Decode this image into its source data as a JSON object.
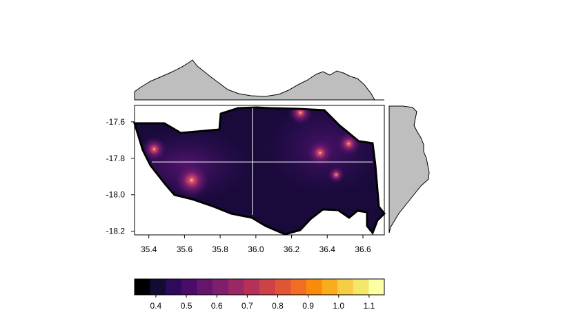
{
  "chart_data": {
    "type": "heatmap",
    "title": "",
    "xlabel": "",
    "ylabel": "",
    "xlim": [
      35.32,
      36.72
    ],
    "ylim": [
      -18.22,
      -17.51
    ],
    "x_ticks": [
      "35.4",
      "35.6",
      "35.8",
      "36.0",
      "36.2",
      "36.4",
      "36.6"
    ],
    "y_ticks": [
      "-17.6",
      "-17.8",
      "-18.0",
      "-18.2"
    ],
    "crosshair": {
      "x": 35.98,
      "y": -17.82
    },
    "colorbar": {
      "range": [
        0.33,
        1.15
      ],
      "ticks": [
        "0.4",
        "0.5",
        "0.6",
        "0.7",
        "0.8",
        "0.9",
        "1.0",
        "1.1"
      ],
      "colors": [
        "#000004",
        "#140b35",
        "#2e0a5a",
        "#4a0c6b",
        "#65156e",
        "#7f1e6c",
        "#9a2865",
        "#b4325a",
        "#cc4248",
        "#e05536",
        "#f06d23",
        "#f98b0b",
        "#fbac1b",
        "#f7cd44",
        "#f2e66b",
        "#fcffa4"
      ]
    },
    "hotspots": [
      {
        "x": 35.64,
        "y": -17.92,
        "value": 0.68
      },
      {
        "x": 35.43,
        "y": -17.75,
        "value": 0.58
      },
      {
        "x": 36.25,
        "y": -17.55,
        "value": 0.58
      },
      {
        "x": 36.36,
        "y": -17.77,
        "value": 0.6
      },
      {
        "x": 36.52,
        "y": -17.72,
        "value": 0.58
      },
      {
        "x": 36.45,
        "y": -17.89,
        "value": 0.52
      }
    ],
    "top_marginal": {
      "type": "area",
      "color": "#bebebe"
    },
    "right_marginal": {
      "type": "area",
      "color": "#bebebe"
    }
  }
}
